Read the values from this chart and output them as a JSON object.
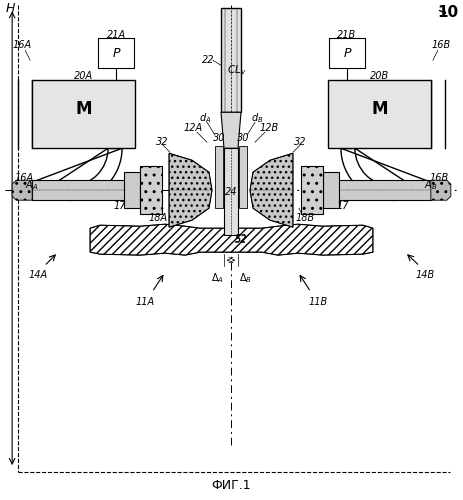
{
  "title": "ФИГ.1",
  "ref_number": "10",
  "bg_color": "#ffffff",
  "line_color": "#000000",
  "labels": {
    "H": "H",
    "CL_v": "CL_v",
    "d_A": "d_A",
    "d_B": "d_B",
    "10": "10",
    "11A": "11A",
    "11B": "11B",
    "12A": "12A",
    "12B": "12B",
    "14A": "14A",
    "14B": "14B",
    "16A_top": "16A",
    "16B_top": "16B",
    "16A_mid": "16A",
    "16B_mid": "16B",
    "17A": "17",
    "17B": "17",
    "18A": "18A",
    "18B": "18B",
    "20A": "20A",
    "20B": "20B",
    "21A": "21A",
    "21B": "21B",
    "22": "22",
    "24": "24",
    "30L": "30",
    "30R": "30",
    "32L": "32",
    "32R": "32",
    "52": "52",
    "A_A": "A_A",
    "A_B": "A_B",
    "Delta_A": "Δ_A",
    "Delta_B": "Δ_B",
    "M_L": "M",
    "M_R": "M",
    "P_L": "P",
    "P_R": "P"
  }
}
